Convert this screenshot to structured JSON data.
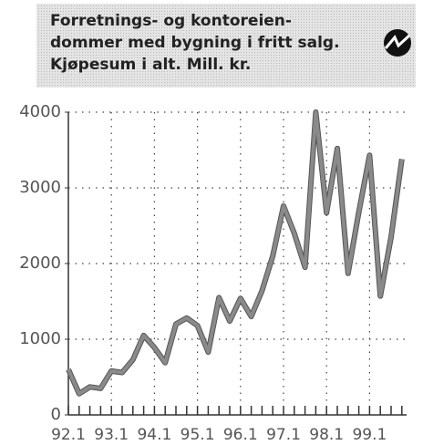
{
  "chart_data": {
    "type": "line",
    "title": [
      "Forretnings- og kontoreien-",
      "dommer med bygning i fritt salg.",
      "Kjøpesum i alt. Mill. kr."
    ],
    "categories": [
      "92.1",
      null,
      null,
      null,
      "93.1",
      null,
      null,
      null,
      "94.1",
      null,
      null,
      null,
      "95.1",
      null,
      null,
      null,
      "96.1",
      null,
      null,
      null,
      "97.1",
      null,
      null,
      null,
      "98.1",
      null,
      null,
      null,
      "99.1",
      null,
      null,
      null
    ],
    "values": [
      600,
      280,
      370,
      350,
      580,
      560,
      730,
      1050,
      890,
      690,
      1200,
      1280,
      1180,
      830,
      1550,
      1240,
      1540,
      1300,
      1640,
      2100,
      2760,
      2400,
      1950,
      4000,
      2670,
      3520,
      1870,
      2680,
      3430,
      1570,
      2350,
      3380
    ],
    "color": "#8a8a8a",
    "ylim": [
      0,
      4000
    ],
    "yticks": [
      0,
      1000,
      2000,
      3000,
      4000
    ],
    "grid": true
  }
}
